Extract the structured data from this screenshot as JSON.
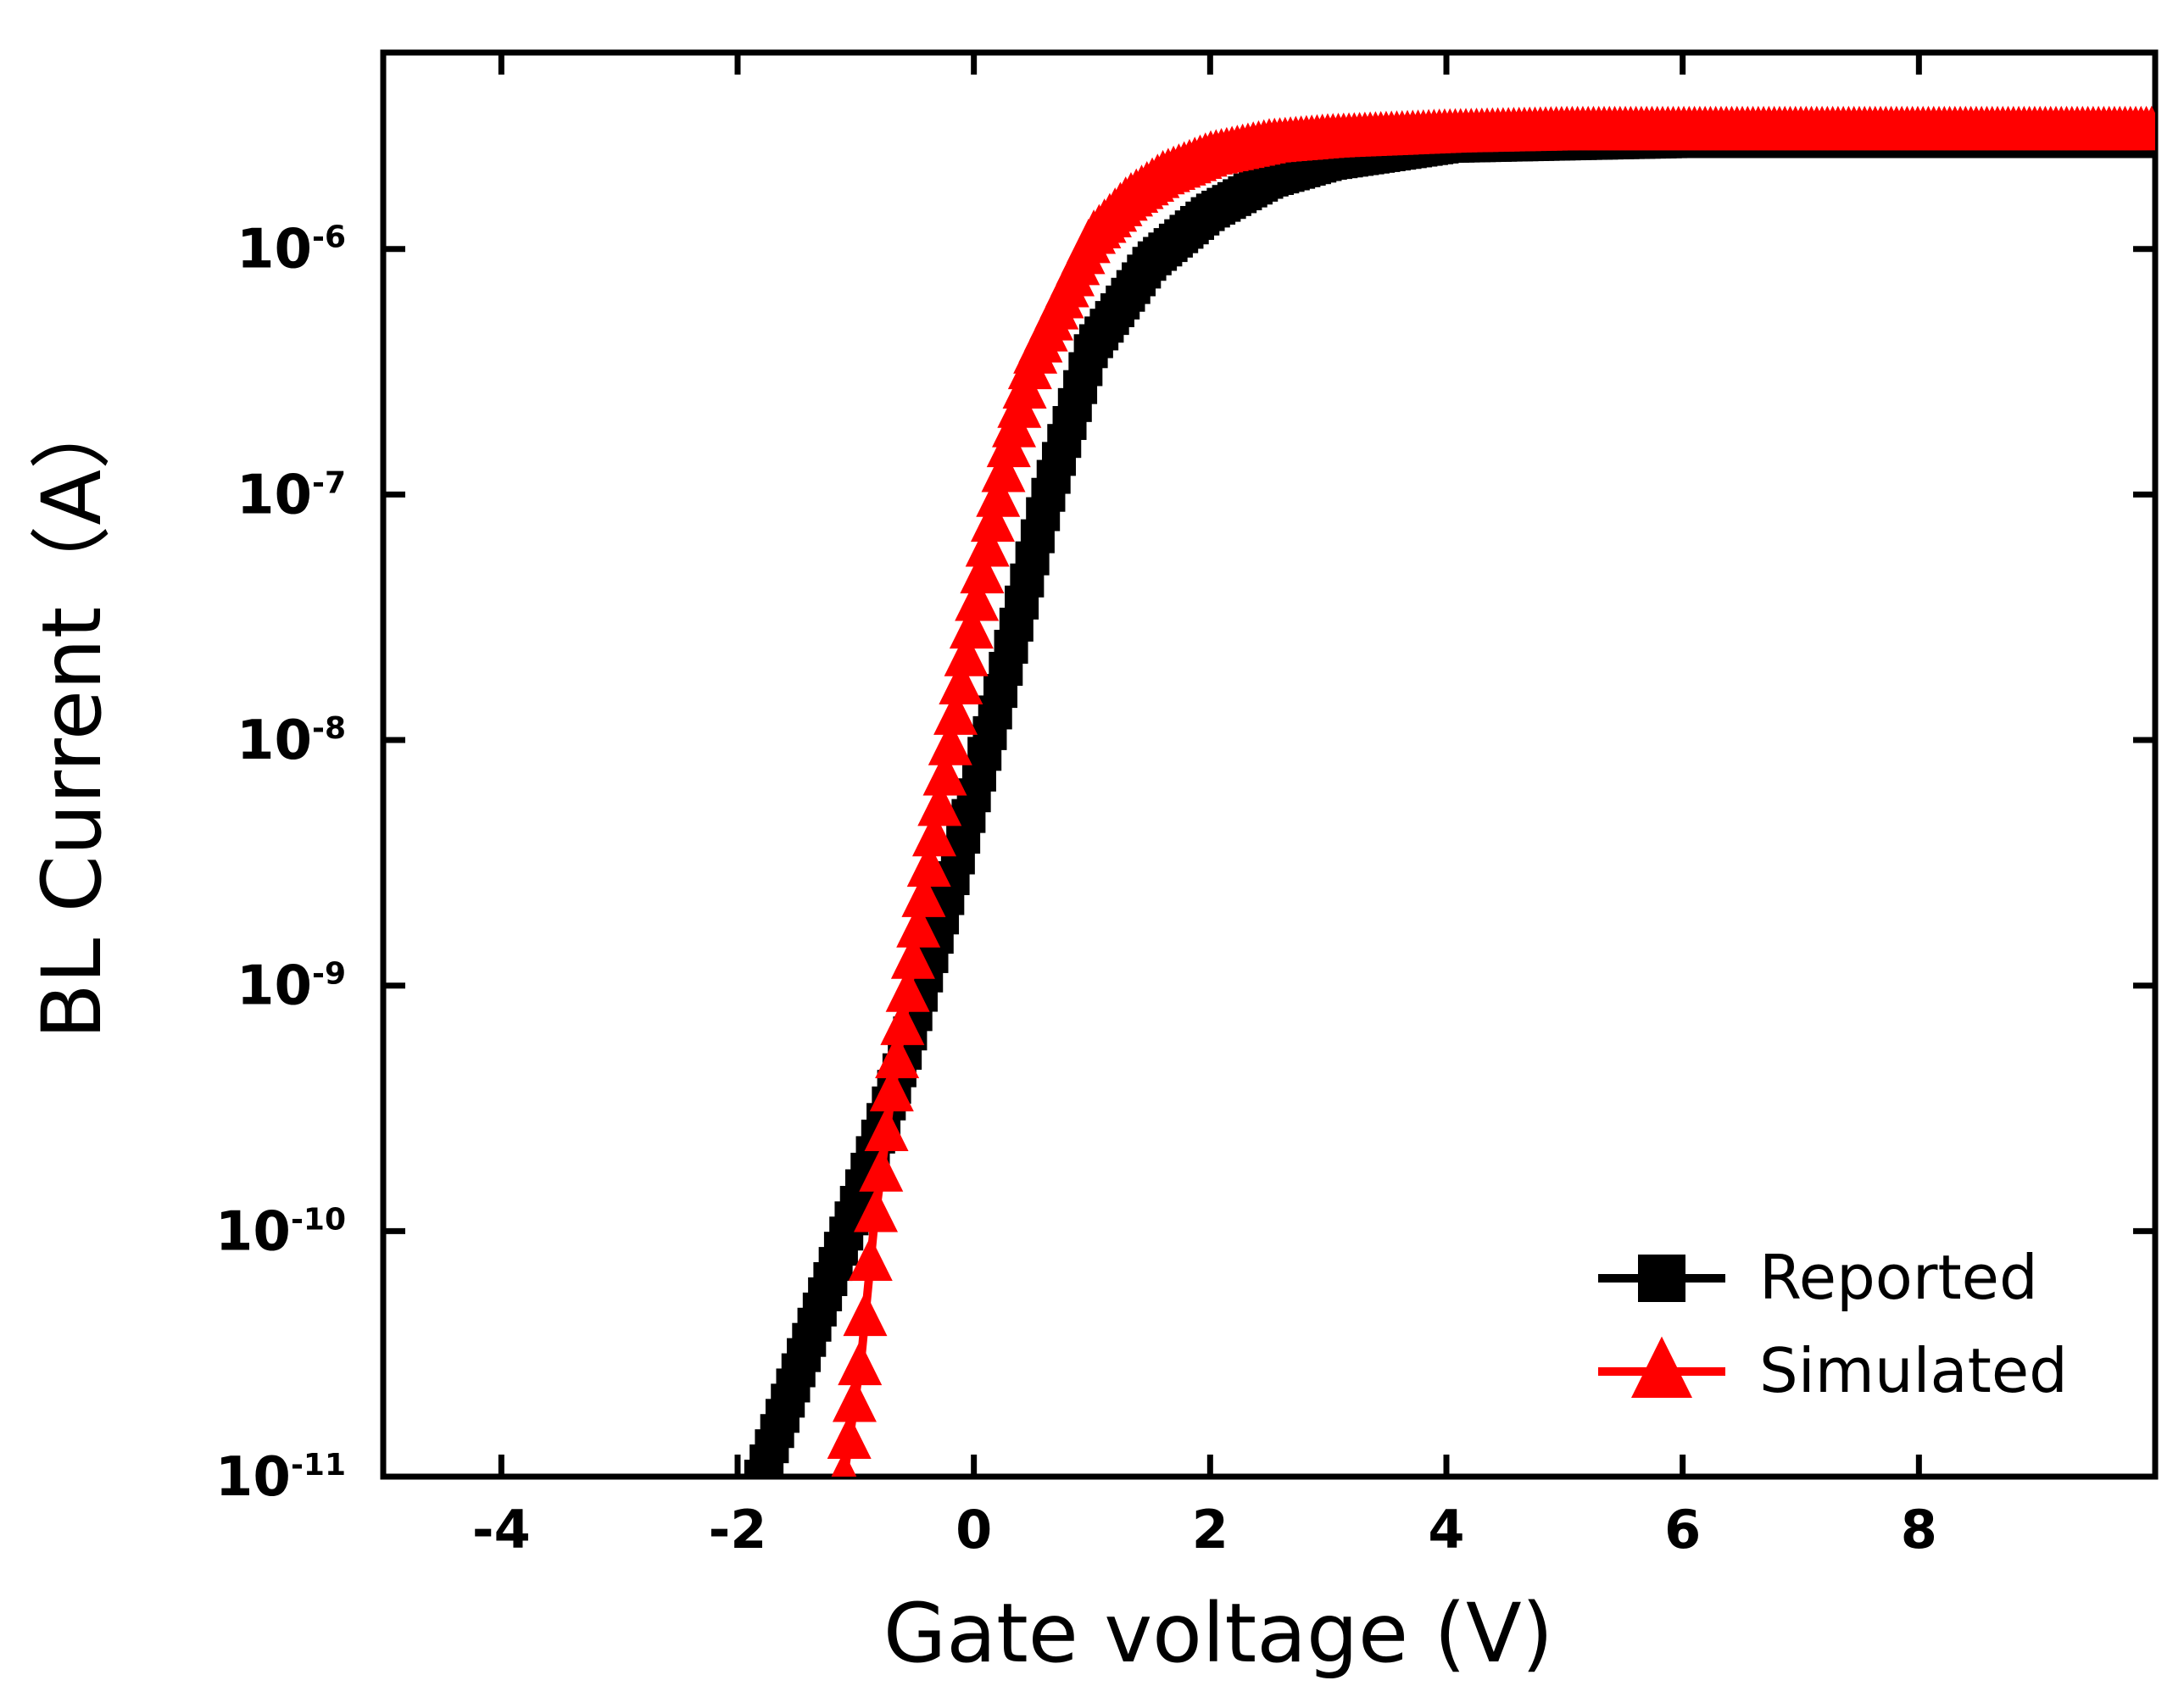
{
  "chart_data": {
    "type": "scatter",
    "title": "",
    "xlabel": "Gate voltage (V)",
    "ylabel": "BL Current（A）",
    "xlim": [
      -5,
      10
    ],
    "ylim_log10": [
      -11,
      -5.2
    ],
    "y_scale": "log",
    "x_ticks": [
      {
        "value": -4,
        "label": "-4"
      },
      {
        "value": -2,
        "label": "-2"
      },
      {
        "value": 0,
        "label": "0"
      },
      {
        "value": 2,
        "label": "2"
      },
      {
        "value": 4,
        "label": "4"
      },
      {
        "value": 6,
        "label": "6"
      },
      {
        "value": 8,
        "label": "8"
      }
    ],
    "y_ticks": [
      {
        "exp": -6,
        "base": "10",
        "sup": "-6"
      },
      {
        "exp": -7,
        "base": "10",
        "sup": "-7"
      },
      {
        "exp": -8,
        "base": "10",
        "sup": "-8"
      },
      {
        "exp": -9,
        "base": "10",
        "sup": "-9"
      },
      {
        "exp": -10,
        "base": "10",
        "sup": "-10"
      },
      {
        "exp": -11,
        "base": "10",
        "sup": "-11"
      }
    ],
    "legend_position": "bottom-right",
    "series": [
      {
        "name": "Reported",
        "color": "#000000",
        "marker": "square",
        "x": [
          -1.8,
          -1.4,
          -1.0,
          -0.6,
          -0.2,
          0.2,
          0.6,
          1.0,
          1.5,
          2.0,
          2.5,
          3.0,
          4.0,
          5.0,
          6.0,
          7.0,
          8.0,
          9.0,
          10.0
        ],
        "y_log10": [
          -11.0,
          -10.45,
          -9.9,
          -9.3,
          -8.6,
          -7.85,
          -7.05,
          -6.4,
          -6.05,
          -5.85,
          -5.72,
          -5.65,
          -5.58,
          -5.57,
          -5.56,
          -5.56,
          -5.56,
          -5.56,
          -5.56
        ]
      },
      {
        "name": "Simulated",
        "color": "#ff0000",
        "marker": "triangle",
        "x": [
          -1.1,
          -0.95,
          -0.85,
          -0.7,
          -0.5,
          -0.3,
          -0.1,
          0.1,
          0.3,
          0.5,
          0.8,
          1.0,
          1.3,
          1.6,
          2.0,
          2.5,
          3.0,
          4.0,
          5.0,
          6.0,
          7.0,
          8.0,
          9.0,
          10.0
        ],
        "y_log10": [
          -11.0,
          -10.5,
          -10.0,
          -9.45,
          -8.85,
          -8.3,
          -7.75,
          -7.25,
          -6.8,
          -6.45,
          -6.15,
          -5.95,
          -5.8,
          -5.7,
          -5.62,
          -5.57,
          -5.55,
          -5.53,
          -5.52,
          -5.52,
          -5.52,
          -5.52,
          -5.52,
          -5.52
        ]
      }
    ]
  }
}
